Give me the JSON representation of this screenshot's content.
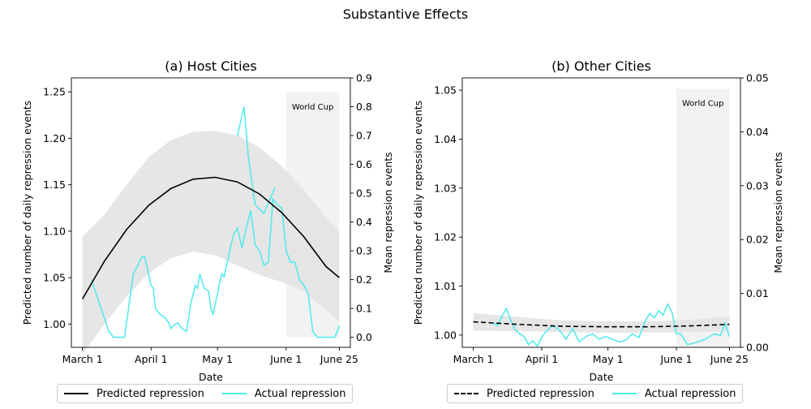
{
  "figure_title": "Substantive Effects",
  "colors": {
    "predicted": "#000000",
    "actual": "#4deaea",
    "band": "#e3e3e3",
    "worldcup": "#f2f2f2"
  },
  "chart_data": [
    {
      "type": "line",
      "title": "(a) Host Cities",
      "xlabel": "Date",
      "ylabel": "Predicted number of daily repression events",
      "y2label": "Mean repression events",
      "x_ticks": [
        "March 1",
        "April 1",
        "May 1",
        "June 1",
        "June 25"
      ],
      "x_range": [
        "2014-02-24",
        "2014-06-30"
      ],
      "ylim": [
        0.975,
        1.265
      ],
      "y_ticks": [
        "1.00",
        "1.05",
        "1.10",
        "1.15",
        "1.20",
        "1.25"
      ],
      "y2lim": [
        -0.035,
        0.9
      ],
      "y2_ticks": [
        "0.0",
        "0.1",
        "0.2",
        "0.3",
        "0.4",
        "0.5",
        "0.6",
        "0.7",
        "0.8",
        "0.9"
      ],
      "annotation": {
        "label": "World Cup",
        "start": "2014-06-01",
        "end": "2014-06-25",
        "y2_top": 0.85
      },
      "predicted": {
        "name": "Predicted repression",
        "style": "solid",
        "x": [
          "2014-03-01",
          "2014-03-11",
          "2014-03-21",
          "2014-03-31",
          "2014-04-10",
          "2014-04-20",
          "2014-04-30",
          "2014-05-10",
          "2014-05-20",
          "2014-05-30",
          "2014-06-09",
          "2014-06-19",
          "2014-06-25"
        ],
        "y": [
          1.027,
          1.068,
          1.102,
          1.128,
          1.146,
          1.156,
          1.158,
          1.153,
          1.14,
          1.12,
          1.094,
          1.062,
          1.05
        ],
        "lower": [
          0.968,
          1.0,
          1.03,
          1.055,
          1.071,
          1.078,
          1.074,
          1.063,
          1.053,
          1.045,
          1.035,
          1.015,
          1.003
        ],
        "upper": [
          1.094,
          1.118,
          1.15,
          1.18,
          1.198,
          1.207,
          1.208,
          1.203,
          1.19,
          1.17,
          1.145,
          1.114,
          1.1
        ]
      },
      "actual": {
        "name": "Actual repression",
        "x": [
          "2014-03-05",
          "2014-03-13",
          "2014-03-15",
          "2014-03-20",
          "2014-03-24",
          "2014-03-28",
          "2014-03-29",
          "2014-03-30",
          "2014-04-01",
          "2014-04-02",
          "2014-04-03",
          "2014-04-05",
          "2014-04-07",
          "2014-04-09",
          "2014-04-10",
          "2014-04-11",
          "2014-04-13",
          "2014-04-14",
          "2014-04-15",
          "2014-04-17",
          "2014-04-19",
          "2014-04-21",
          "2014-04-22",
          "2014-04-23",
          "2014-04-25",
          "2014-04-27",
          "2014-04-28",
          "2014-04-29",
          "2014-05-01",
          "2014-05-02",
          "2014-05-03",
          "2014-05-04",
          "2014-05-06",
          "2014-05-08",
          "2014-05-10",
          "2014-05-12",
          "2014-05-14",
          "2014-05-16",
          "2014-05-18",
          "2014-05-20",
          "2014-05-22",
          "2014-05-24",
          "2014-05-26",
          "2014-05-28",
          "2014-05-30",
          "2014-06-01",
          "2014-06-03",
          "2014-06-05",
          "2014-06-07",
          "2014-06-09",
          "2014-06-11",
          "2014-06-13",
          "2014-06-15",
          "2014-06-17",
          "2014-06-19",
          "2014-06-21",
          "2014-06-23",
          "2014-06-25"
        ],
        "y": [
          0.2,
          0.02,
          0.0,
          0.0,
          0.22,
          0.28,
          0.28,
          0.25,
          0.18,
          0.17,
          0.1,
          0.08,
          0.07,
          0.05,
          0.03,
          0.04,
          0.05,
          0.04,
          0.03,
          0.02,
          0.12,
          0.18,
          0.17,
          0.22,
          0.17,
          0.16,
          0.1,
          0.08,
          0.15,
          0.19,
          0.22,
          0.21,
          0.28,
          0.35,
          0.38,
          0.31,
          0.38,
          0.44,
          0.32,
          0.3,
          0.25,
          0.26,
          0.48,
          0.46,
          0.45,
          0.3,
          0.26,
          0.26,
          0.2,
          0.18,
          0.15,
          0.02,
          0.0,
          0.0,
          0.0,
          0.0,
          0.0,
          0.04
        ]
      },
      "actual_spikes": {
        "x": [
          "2014-05-10",
          "2014-05-13",
          "2014-05-15",
          "2014-05-18",
          "2014-05-22",
          "2014-05-27"
        ],
        "y": [
          0.7,
          0.8,
          0.62,
          0.46,
          0.43,
          0.52
        ]
      }
    },
    {
      "type": "line",
      "title": "(b) Other Cities",
      "xlabel": "Date",
      "ylabel": "Predicted number of daily repression events",
      "y2label": "Mean repression events",
      "x_ticks": [
        "March 1",
        "April 1",
        "May 1",
        "June 1",
        "June 25"
      ],
      "x_range": [
        "2014-02-24",
        "2014-06-30"
      ],
      "ylim": [
        0.9975,
        1.0525
      ],
      "y_ticks": [
        "1.00",
        "1.01",
        "1.02",
        "1.03",
        "1.04",
        "1.05"
      ],
      "y2lim": [
        0.0,
        0.05
      ],
      "y2_ticks": [
        "0.00",
        "0.01",
        "0.02",
        "0.03",
        "0.04",
        "0.05"
      ],
      "annotation": {
        "label": "World Cup",
        "start": "2014-06-01",
        "end": "2014-06-25",
        "y2_top": 0.048
      },
      "predicted": {
        "name": "Predicted repression",
        "style": "dashed",
        "x": [
          "2014-03-01",
          "2014-03-21",
          "2014-04-10",
          "2014-04-30",
          "2014-05-20",
          "2014-06-09",
          "2014-06-25"
        ],
        "y": [
          1.0027,
          1.0022,
          1.0018,
          1.0017,
          1.0017,
          1.0019,
          1.0022
        ],
        "lower": [
          1.0009,
          1.0008,
          1.0006,
          1.0005,
          1.0005,
          1.0006,
          1.0008
        ],
        "upper": [
          1.0045,
          1.0037,
          1.003,
          1.0028,
          1.0028,
          1.0032,
          1.0038
        ]
      },
      "actual": {
        "name": "Actual repression",
        "x": [
          "2014-03-10",
          "2014-03-12",
          "2014-03-14",
          "2014-03-16",
          "2014-03-18",
          "2014-03-20",
          "2014-03-22",
          "2014-03-24",
          "2014-03-26",
          "2014-03-28",
          "2014-03-30",
          "2014-04-01",
          "2014-04-03",
          "2014-04-06",
          "2014-04-09",
          "2014-04-12",
          "2014-04-15",
          "2014-04-18",
          "2014-04-21",
          "2014-04-24",
          "2014-04-27",
          "2014-04-30",
          "2014-05-03",
          "2014-05-06",
          "2014-05-09",
          "2014-05-12",
          "2014-05-15",
          "2014-05-18",
          "2014-05-20",
          "2014-05-22",
          "2014-05-24",
          "2014-05-26",
          "2014-05-28",
          "2014-05-30",
          "2014-06-01",
          "2014-06-03",
          "2014-06-06",
          "2014-06-09",
          "2014-06-12",
          "2014-06-15",
          "2014-06-18",
          "2014-06-21",
          "2014-06-23",
          "2014-06-25"
        ],
        "y": [
          0.0045,
          0.004,
          0.0058,
          0.0072,
          0.005,
          0.0032,
          0.0025,
          0.002,
          0.0005,
          0.0012,
          0.0002,
          0.0018,
          0.003,
          0.004,
          0.0032,
          0.0015,
          0.0035,
          0.001,
          0.002,
          0.0025,
          0.0015,
          0.002,
          0.0015,
          0.001,
          0.0013,
          0.0025,
          0.0018,
          0.005,
          0.0063,
          0.0055,
          0.0068,
          0.006,
          0.008,
          0.0065,
          0.0025,
          0.0025,
          0.0005,
          0.0008,
          0.0012,
          0.0017,
          0.0025,
          0.0022,
          0.0045,
          0.002
        ]
      }
    }
  ]
}
